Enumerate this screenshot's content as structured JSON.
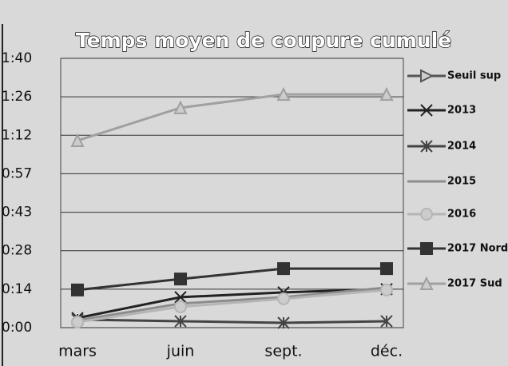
{
  "chart_data": {
    "type": "line",
    "title": "Temps moyen de coupure cumulé",
    "categories": [
      "mars",
      "juin",
      "sept.",
      "déc."
    ],
    "ylim": [
      0,
      100.8
    ],
    "yticks": [
      {
        "value": 0,
        "label": "0:00"
      },
      {
        "value": 14.4,
        "label": "0:14"
      },
      {
        "value": 28.8,
        "label": "0:28"
      },
      {
        "value": 43.2,
        "label": "0:43"
      },
      {
        "value": 57.6,
        "label": "0:57"
      },
      {
        "value": 72,
        "label": "1:12"
      },
      {
        "value": 86.4,
        "label": "1:26"
      },
      {
        "value": 100.8,
        "label": "1:40"
      }
    ],
    "grid": true,
    "legend": "right",
    "series": [
      {
        "name": "Seuil sup",
        "color": "#555555",
        "marker": "triangle-right",
        "values": [
          null,
          null,
          null,
          null
        ]
      },
      {
        "name": "2013",
        "color": "#222222",
        "marker": "x",
        "values": [
          3.6,
          11.4,
          13.2,
          14.4
        ]
      },
      {
        "name": "2014",
        "color": "#444444",
        "marker": "star",
        "values": [
          3.0,
          2.4,
          1.8,
          2.4
        ]
      },
      {
        "name": "2015",
        "color": "#8c8c8c",
        "marker": "none",
        "values": [
          2.7,
          9.0,
          11.4,
          15.0
        ]
      },
      {
        "name": "2016",
        "color": "#b5b5b5",
        "marker": "circle",
        "values": [
          2.1,
          7.8,
          10.8,
          14.1
        ]
      },
      {
        "name": "2017 Nord",
        "color": "#333333",
        "marker": "square",
        "values": [
          14.1,
          18.2,
          22.1,
          22.1
        ]
      },
      {
        "name": "2017 Sud",
        "color": "#a0a0a0",
        "marker": "triangle",
        "values": [
          70.0,
          82.3,
          87.3,
          87.3
        ]
      }
    ]
  }
}
